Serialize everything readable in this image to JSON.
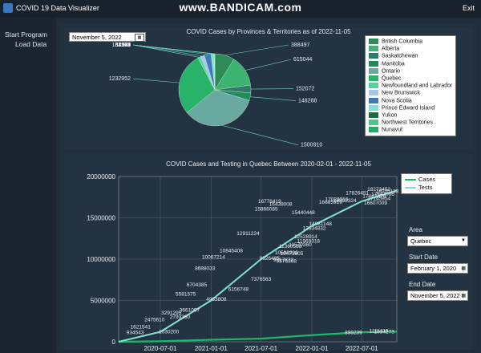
{
  "window": {
    "title": "COVID 19 Data Visualizer",
    "watermark": "www.BANDICAM.com",
    "exit_label": "Exit"
  },
  "sidebar": {
    "items": [
      {
        "label": "Start Program"
      },
      {
        "label": "Load Data"
      }
    ]
  },
  "pie_panel": {
    "date_value": "November   5, 2022"
  },
  "line_panel": {
    "area_label": "Area",
    "area_value": "Quebec",
    "start_label": "Start Date",
    "start_value": "February   1, 2020",
    "end_label": "End Date",
    "end_value": "November   5, 2022"
  },
  "colors": {
    "background": "#1f2c3a",
    "cases_line": "#1db86b",
    "tests_line": "#7fe0d0"
  },
  "chart_data": [
    {
      "type": "pie",
      "title": "COVID Cases by Provinces & Territories as of 2022-11-05",
      "legend_position": "right",
      "slices": [
        {
          "name": "British Columbia",
          "value": 388497,
          "color": "#2e8b57"
        },
        {
          "name": "Alberta",
          "value": 615044,
          "color": "#3cb371"
        },
        {
          "name": "Saskatchewan",
          "value": 152072,
          "color": "#2f7a68"
        },
        {
          "name": "Manitoba",
          "value": 148288,
          "color": "#238a5e"
        },
        {
          "name": "Ontario",
          "value": 1500910,
          "color": "#6aa9a0"
        },
        {
          "name": "Quebec",
          "value": 1232952,
          "color": "#29b36a"
        },
        {
          "name": "Newfoundland and Labrador",
          "value": 52973,
          "color": "#56d39a"
        },
        {
          "name": "New Brunswick",
          "value": 81269,
          "color": "#a6c7e8"
        },
        {
          "name": "Nova Scotia",
          "value": 131239,
          "color": "#3e78b8"
        },
        {
          "name": "Prince Edward Island",
          "value": 53797,
          "color": "#7de3d0"
        },
        {
          "name": "Yukon",
          "value": 4974,
          "color": "#1e6b3f"
        },
        {
          "name": "Northwest Territories",
          "value": 11511,
          "color": "#4cc78a"
        },
        {
          "name": "Nunavut",
          "value": 3531,
          "color": "#2aa86a"
        }
      ]
    },
    {
      "type": "line",
      "title": "COVID Cases and Testing in Quebec Between 2020-02-01 - 2022-11-05",
      "legend_position": "top-right",
      "grid": true,
      "ylim": [
        0,
        20000000
      ],
      "y_ticks": [
        "0",
        "5000000",
        "10000000",
        "15000000",
        "20000000"
      ],
      "x_ticks": [
        "2020-07-01",
        "2021-01-01",
        "2021-07-01",
        "2022-01-01",
        "2022-07-01"
      ],
      "series": [
        {
          "name": "Cases",
          "x": [
            "2020-02-01",
            "2020-07-01",
            "2021-01-01",
            "2021-07-01",
            "2022-01-01",
            "2022-07-01",
            "2022-11-05"
          ],
          "values": [
            0,
            60000,
            240000,
            380000,
            800000,
            1150000,
            1232952
          ]
        },
        {
          "name": "Tests",
          "x": [
            "2020-02-01",
            "2020-07-01",
            "2021-01-01",
            "2021-07-01",
            "2022-01-01",
            "2022-07-01",
            "2022-11-05"
          ],
          "values": [
            0,
            1200000,
            5000000,
            10000000,
            14000000,
            17000000,
            18300000
          ]
        }
      ],
      "data_labels": [
        {
          "x": "2021-08-01",
          "y": 16776419,
          "text": "16776419"
        },
        {
          "x": "2021-09-10",
          "y": 16438008,
          "text": "16438008"
        },
        {
          "x": "2021-07-20",
          "y": 15866085,
          "text": "15866085"
        },
        {
          "x": "2021-05-15",
          "y": 12911224,
          "text": "12911224"
        },
        {
          "x": "2021-03-15",
          "y": 10845408,
          "text": "10845408"
        },
        {
          "x": "2021-01-10",
          "y": 10067214,
          "text": "10067214"
        },
        {
          "x": "2020-12-10",
          "y": 8688033,
          "text": "8688033"
        },
        {
          "x": "2020-11-10",
          "y": 6704385,
          "text": "6704385"
        },
        {
          "x": "2020-10-01",
          "y": 5581575,
          "text": "5581575"
        },
        {
          "x": "2020-08-10",
          "y": 3291295,
          "text": "3291295"
        },
        {
          "x": "2020-06-10",
          "y": 2475610,
          "text": "2475610"
        },
        {
          "x": "2020-04-20",
          "y": 1621541,
          "text": "1621541"
        },
        {
          "x": "2020-04-01",
          "y": 934543,
          "text": "934543"
        },
        {
          "x": "2022-03-10",
          "y": 16685919,
          "text": "16685919"
        },
        {
          "x": "2022-06-15",
          "y": 17826451,
          "text": "17826451"
        },
        {
          "x": "2022-09-01",
          "y": 17145954,
          "text": "17145954"
        },
        {
          "x": "2022-09-01",
          "y": 18273452,
          "text": "18273452"
        },
        {
          "x": "2022-08-15",
          "y": 17443479,
          "text": "17443479"
        },
        {
          "x": "2022-08-20",
          "y": 16607009,
          "text": "16607009"
        },
        {
          "x": "2022-10-01",
          "y": 18025133,
          "text": "18025133"
        },
        {
          "x": "2022-09-15",
          "y": 17647066,
          "text": "17647066"
        },
        {
          "x": "2022-02-01",
          "y": 14081148,
          "text": "14081148"
        },
        {
          "x": "2022-04-01",
          "y": 17023016,
          "text": "17023016"
        },
        {
          "x": "2022-05-01",
          "y": 16892324,
          "text": "16892324"
        },
        {
          "x": "2021-12-20",
          "y": 11969318,
          "text": "11969318"
        },
        {
          "x": "2021-10-01",
          "y": 10590393,
          "text": "10590393"
        },
        {
          "x": "2021-12-01",
          "y": 15440448,
          "text": "15440448"
        },
        {
          "x": "2021-10-15",
          "y": 11360588,
          "text": "11360588"
        },
        {
          "x": "2022-01-10",
          "y": 13534832,
          "text": "13534832"
        },
        {
          "x": "2021-10-20",
          "y": 10471605,
          "text": "10471605"
        },
        {
          "x": "2021-12-10",
          "y": 12528914,
          "text": "12528914"
        },
        {
          "x": "2021-10-01",
          "y": 9575308,
          "text": "9575308"
        },
        {
          "x": "2021-11-20",
          "y": 11570360,
          "text": "11570360"
        },
        {
          "x": "2021-08-01",
          "y": 9926485,
          "text": "9926485"
        },
        {
          "x": "2021-07-01",
          "y": 7376563,
          "text": "7376563"
        },
        {
          "x": "2021-09-20",
          "y": 9717872,
          "text": "9717872"
        },
        {
          "x": "2021-04-10",
          "y": 6156748,
          "text": "6156748"
        },
        {
          "x": "2021-01-20",
          "y": 4933808,
          "text": "4933808"
        },
        {
          "x": "2020-10-15",
          "y": 3661097,
          "text": "3661097"
        },
        {
          "x": "2020-09-10",
          "y": 2793360,
          "text": "2793360"
        },
        {
          "x": "2020-08-01",
          "y": 1030200,
          "text": "1030200"
        },
        {
          "x": "2022-06-01",
          "y": 899239,
          "text": "899239"
        },
        {
          "x": "2022-09-20",
          "y": 1034273,
          "text": "1034273"
        },
        {
          "x": "2022-09-01",
          "y": 1111416,
          "text": "1111416"
        }
      ]
    }
  ]
}
